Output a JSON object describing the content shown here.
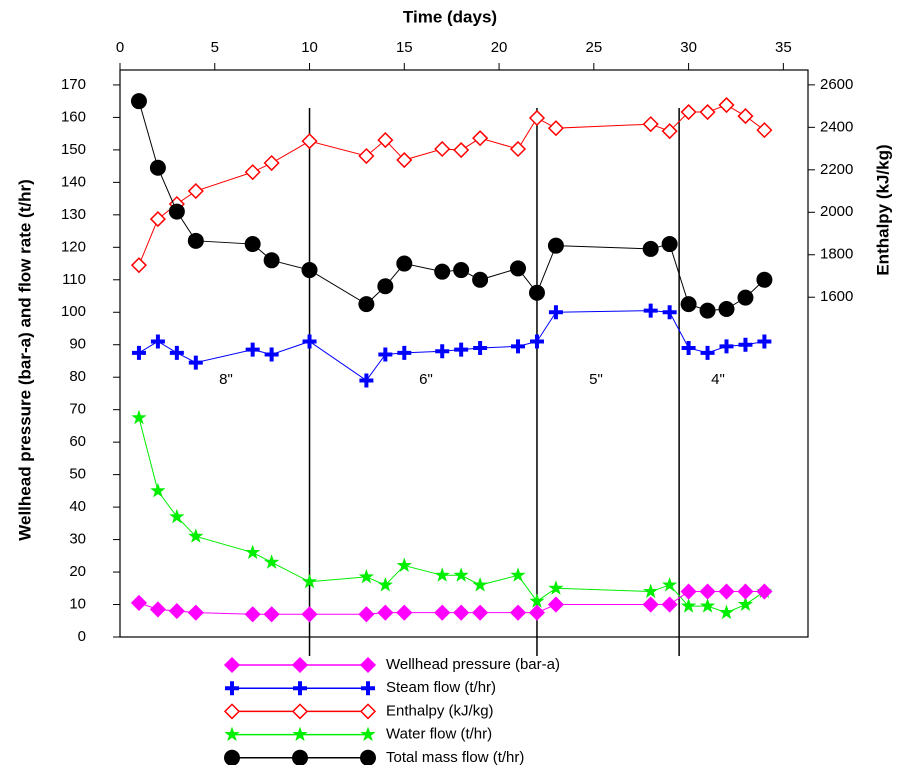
{
  "chart_data": {
    "type": "line",
    "x_label": "Time (days)",
    "y_label": "Wellhead pressure (bar-a) and flow rate (t/hr)",
    "y2_label": "Enthalpy (kJ/kg)",
    "x": [
      1,
      2,
      3,
      4,
      7,
      8,
      10,
      13,
      14,
      15,
      17,
      18,
      19,
      21,
      22,
      23,
      28,
      29,
      30,
      31,
      32,
      33,
      34
    ],
    "xlim": [
      0,
      36.3
    ],
    "xticks": [
      0,
      5,
      10,
      15,
      20,
      25,
      30,
      35
    ],
    "ylim": [
      0,
      174.6
    ],
    "yticks": [
      0,
      10,
      20,
      30,
      40,
      50,
      60,
      70,
      80,
      90,
      100,
      110,
      120,
      130,
      140,
      150,
      160,
      170
    ],
    "y2lim": [
      0,
      2670
    ],
    "y2ticks": [
      1600,
      1800,
      2000,
      2200,
      2400,
      2600
    ],
    "dividers": [
      10,
      22,
      29.5
    ],
    "annotations": [
      "8\"",
      "6\"",
      "5\"",
      "4\""
    ],
    "series": [
      {
        "name": "Wellhead pressure (bar-a)",
        "color": "#ff00ff",
        "marker": "diamond",
        "values": [
          10.5,
          8.5,
          8,
          7.5,
          7,
          7,
          7,
          7,
          7.5,
          7.5,
          7.5,
          7.5,
          7.5,
          7.5,
          7.5,
          10,
          10,
          10,
          14,
          14,
          14,
          14,
          14
        ]
      },
      {
        "name": "Steam flow (t/hr)",
        "color": "#0000ff",
        "marker": "plus",
        "values": [
          87.5,
          91,
          87.5,
          84.5,
          88.5,
          87,
          91,
          79,
          87,
          87.5,
          88,
          88.5,
          89,
          89.5,
          91,
          100,
          100.5,
          100,
          89,
          87.5,
          89.5,
          90,
          91
        ]
      },
      {
        "name": "Enthalpy (kJ/kg)",
        "color": "#ff0000",
        "marker": "open-diamond",
        "axis": "y2",
        "values": [
          1751,
          1968,
          2039,
          2100,
          2189,
          2232,
          2335,
          2265,
          2340,
          2246,
          2298,
          2293,
          2349,
          2298,
          2444,
          2396,
          2415,
          2382,
          2472,
          2472,
          2505,
          2453,
          2387
        ]
      },
      {
        "name": "Water flow (t/hr)",
        "color": "#00ee00",
        "marker": "star",
        "values": [
          67.5,
          45,
          37,
          31,
          26,
          23,
          17,
          18.5,
          16,
          22,
          19,
          19,
          16,
          19,
          11,
          15,
          14,
          16,
          9.5,
          9.5,
          7.5,
          10,
          14
        ]
      },
      {
        "name": "Total mass flow (t/hr)",
        "color": "#000000",
        "marker": "circle",
        "values": [
          165,
          144.5,
          131,
          122,
          121,
          116,
          113,
          102.5,
          108,
          115,
          112.5,
          113,
          110,
          113.5,
          106,
          120.5,
          119.5,
          121,
          102.5,
          100.5,
          101,
          104.5,
          110
        ]
      }
    ]
  }
}
